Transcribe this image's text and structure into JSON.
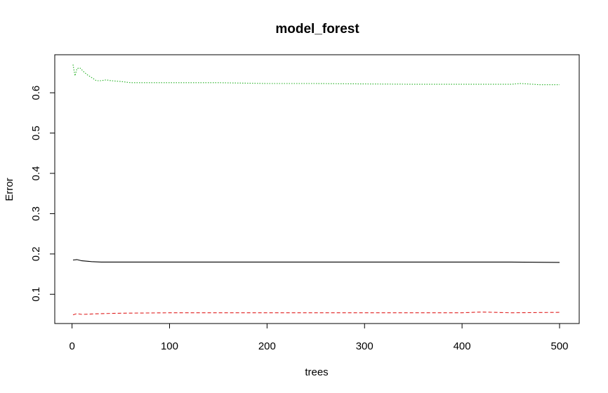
{
  "chart_data": {
    "type": "line",
    "title": "model_forest",
    "xlabel": "trees",
    "ylabel": "Error",
    "xlim": [
      1,
      500
    ],
    "ylim": [
      0.05,
      0.67
    ],
    "x_ticks": [
      0,
      100,
      200,
      300,
      400,
      500
    ],
    "x_tick_labels": [
      "0",
      "100",
      "200",
      "300",
      "400",
      "500"
    ],
    "y_ticks": [
      0.1,
      0.2,
      0.3,
      0.4,
      0.5,
      0.6
    ],
    "y_tick_labels": [
      "0.1",
      "0.2",
      "0.3",
      "0.4",
      "0.5",
      "0.6"
    ],
    "grid": false,
    "series": [
      {
        "color": "#000000",
        "dash": "solid",
        "x": [
          1,
          5,
          10,
          20,
          30,
          50,
          100,
          150,
          200,
          250,
          300,
          350,
          400,
          450,
          500
        ],
        "y": [
          0.185,
          0.186,
          0.183,
          0.181,
          0.18,
          0.18,
          0.18,
          0.18,
          0.18,
          0.18,
          0.18,
          0.18,
          0.18,
          0.18,
          0.179
        ]
      },
      {
        "color": "#DF2020",
        "dash": "dashed",
        "x": [
          1,
          5,
          10,
          20,
          30,
          50,
          100,
          150,
          200,
          250,
          300,
          350,
          400,
          420,
          450,
          500
        ],
        "y": [
          0.049,
          0.052,
          0.05,
          0.051,
          0.052,
          0.053,
          0.054,
          0.054,
          0.054,
          0.054,
          0.054,
          0.054,
          0.054,
          0.056,
          0.054,
          0.055
        ]
      },
      {
        "color": "#22B022",
        "dash": "dotted",
        "x": [
          1,
          3,
          5,
          8,
          12,
          16,
          20,
          25,
          30,
          35,
          40,
          50,
          60,
          80,
          100,
          150,
          200,
          250,
          300,
          350,
          400,
          450,
          460,
          480,
          500
        ],
        "y": [
          0.67,
          0.642,
          0.66,
          0.662,
          0.652,
          0.644,
          0.638,
          0.63,
          0.63,
          0.632,
          0.63,
          0.628,
          0.625,
          0.625,
          0.625,
          0.625,
          0.623,
          0.623,
          0.622,
          0.621,
          0.621,
          0.621,
          0.623,
          0.62,
          0.62
        ]
      }
    ]
  }
}
